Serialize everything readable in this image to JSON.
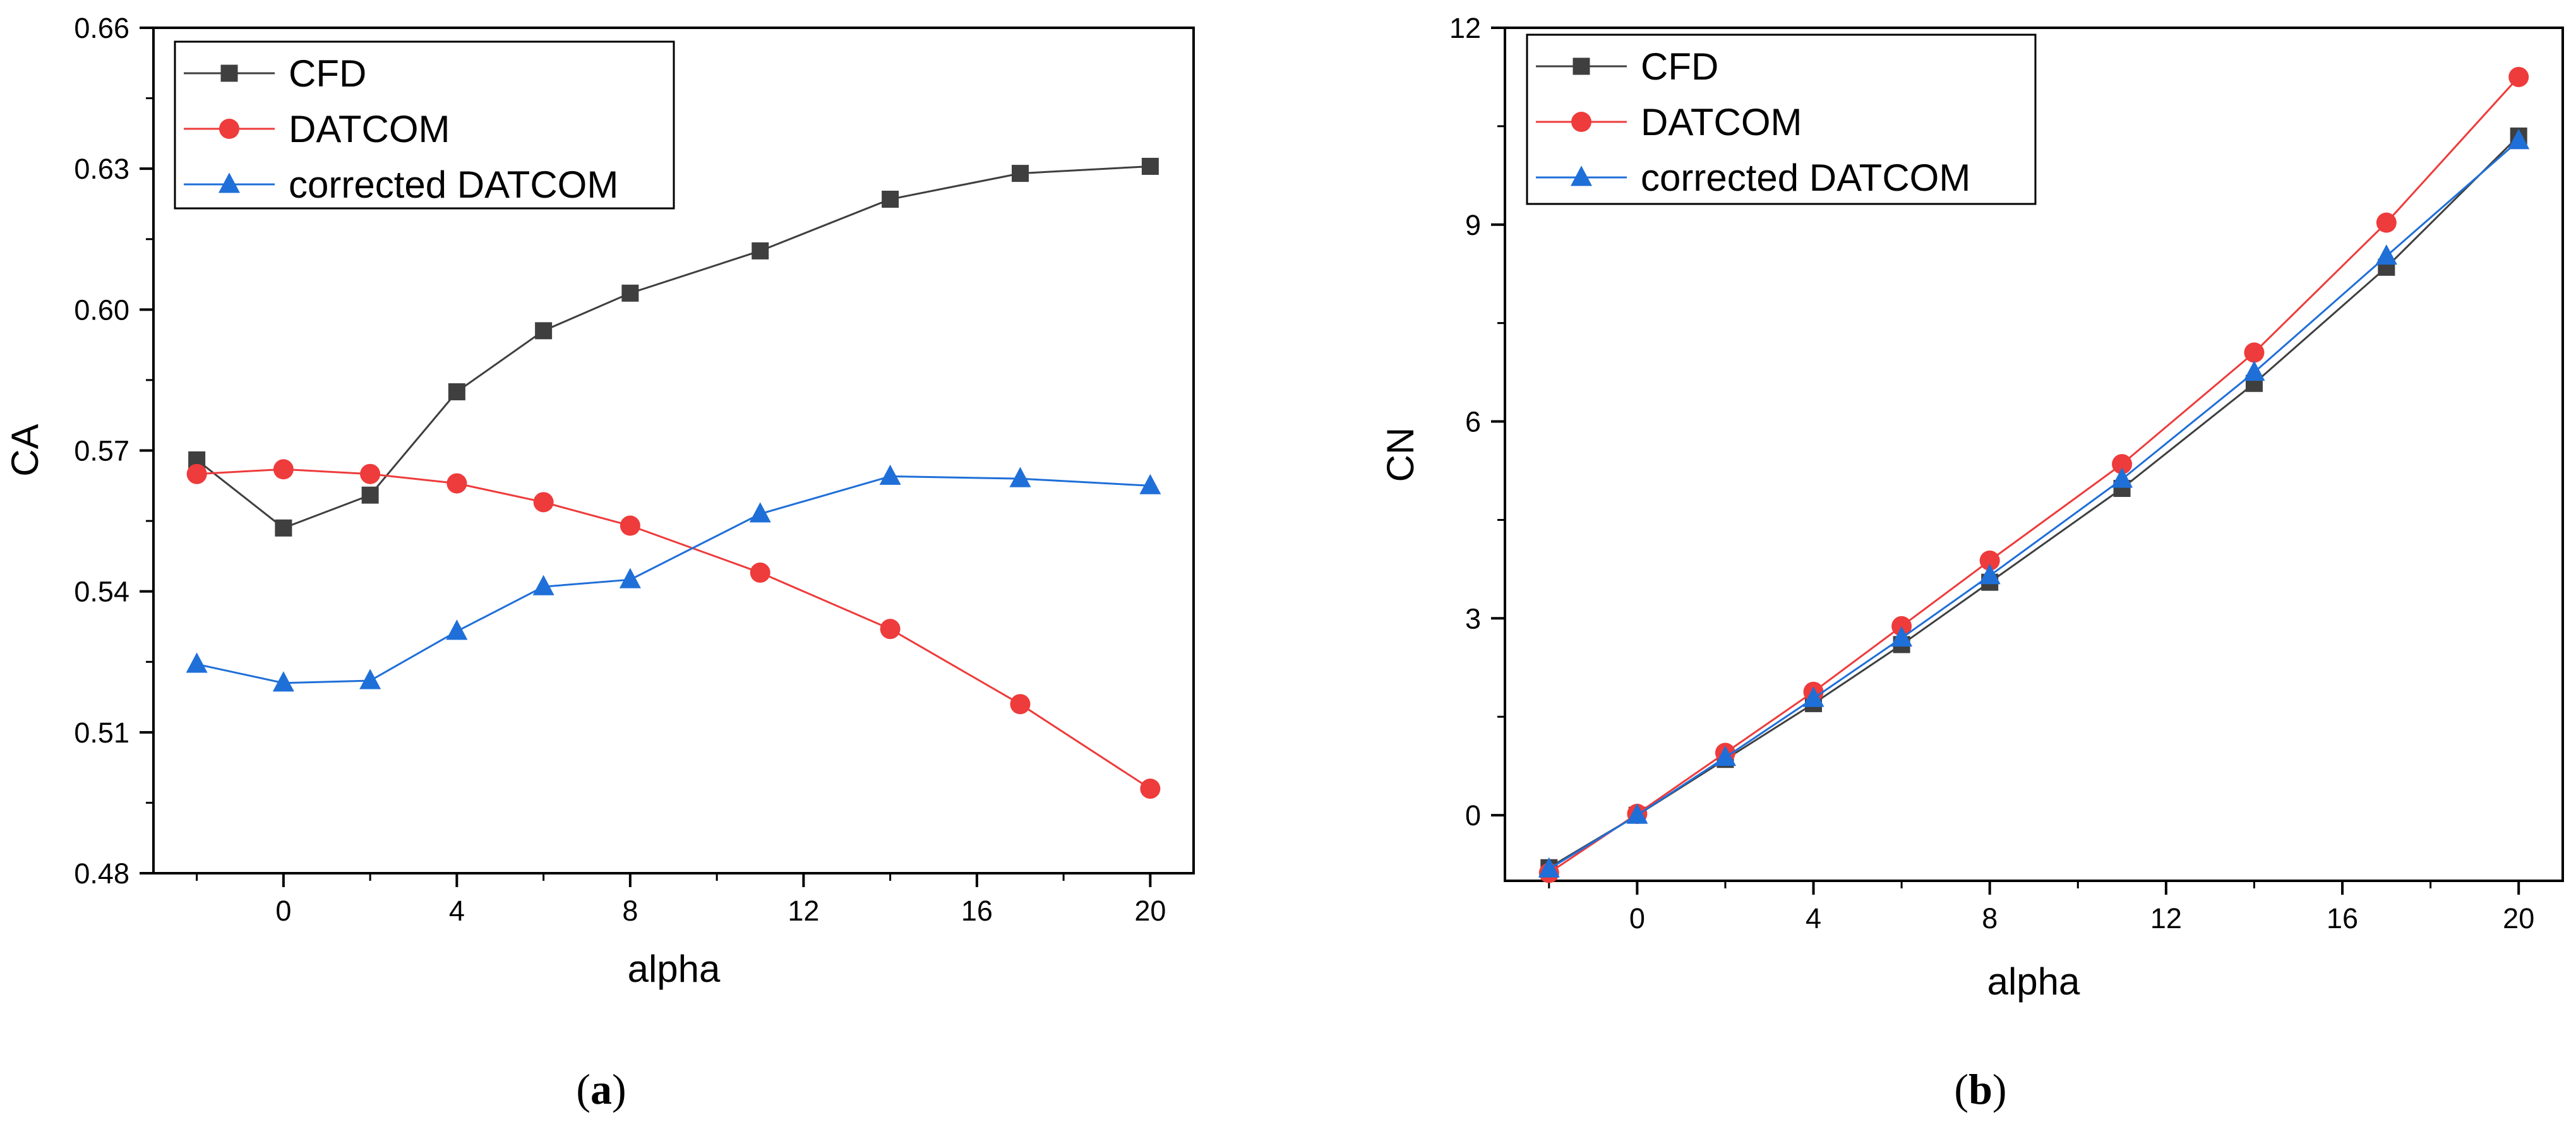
{
  "chart_data": [
    {
      "type": "line",
      "panel_label": "a",
      "caption_open": "(",
      "caption_close": ")",
      "xlabel": "alpha",
      "ylabel": "CA",
      "xlim": [
        -3,
        21
      ],
      "ylim": [
        0.48,
        0.66
      ],
      "xticks": [
        0,
        4,
        8,
        12,
        16,
        20
      ],
      "yticks": [
        "0.48",
        "0.51",
        "0.54",
        "0.57",
        "0.60",
        "0.63",
        "0.66"
      ],
      "legend_position": "top-left",
      "grid": false,
      "x": [
        -2,
        0,
        2,
        4,
        6,
        8,
        11,
        14,
        17,
        20
      ],
      "series": [
        {
          "name": "CFD",
          "marker": "square",
          "color": "#3f3f3f",
          "values": [
            0.568,
            0.5535,
            0.5605,
            0.5825,
            0.5955,
            0.6035,
            0.6125,
            0.6235,
            0.629,
            0.6305
          ]
        },
        {
          "name": "DATCOM",
          "marker": "circle",
          "color": "#ee3b3b",
          "values": [
            0.565,
            0.566,
            0.565,
            0.563,
            0.559,
            0.554,
            0.544,
            0.532,
            0.516,
            0.498
          ]
        },
        {
          "name": "corrected DATCOM",
          "marker": "triangle",
          "color": "#1f6fd8",
          "values": [
            0.5245,
            0.5205,
            0.521,
            0.5315,
            0.541,
            0.5425,
            0.5565,
            0.5645,
            0.564,
            0.5625
          ]
        }
      ]
    },
    {
      "type": "line",
      "panel_label": "b",
      "caption_open": "(",
      "caption_close": ")",
      "xlabel": "alpha",
      "ylabel": "CN",
      "xlim": [
        -3,
        21
      ],
      "ylim": [
        -1,
        12
      ],
      "xticks": [
        0,
        4,
        8,
        12,
        16,
        20
      ],
      "yticks": [
        "0",
        "3",
        "6",
        "9",
        "12"
      ],
      "legend_position": "top-left",
      "grid": false,
      "x": [
        -2,
        0,
        2,
        4,
        6,
        8,
        11,
        14,
        17,
        20
      ],
      "series": [
        {
          "name": "CFD",
          "marker": "square",
          "color": "#3f3f3f",
          "values": [
            -0.8,
            0.0,
            0.85,
            1.7,
            2.6,
            3.55,
            4.98,
            6.58,
            8.35,
            10.35
          ]
        },
        {
          "name": "DATCOM",
          "marker": "circle",
          "color": "#ee3b3b",
          "values": [
            -0.88,
            0.02,
            0.95,
            1.88,
            2.88,
            3.88,
            5.35,
            7.05,
            9.03,
            11.25
          ]
        },
        {
          "name": "corrected DATCOM",
          "marker": "triangle",
          "color": "#1f6fd8",
          "values": [
            -0.82,
            0.0,
            0.88,
            1.78,
            2.7,
            3.65,
            5.12,
            6.75,
            8.52,
            10.28
          ]
        }
      ]
    }
  ]
}
